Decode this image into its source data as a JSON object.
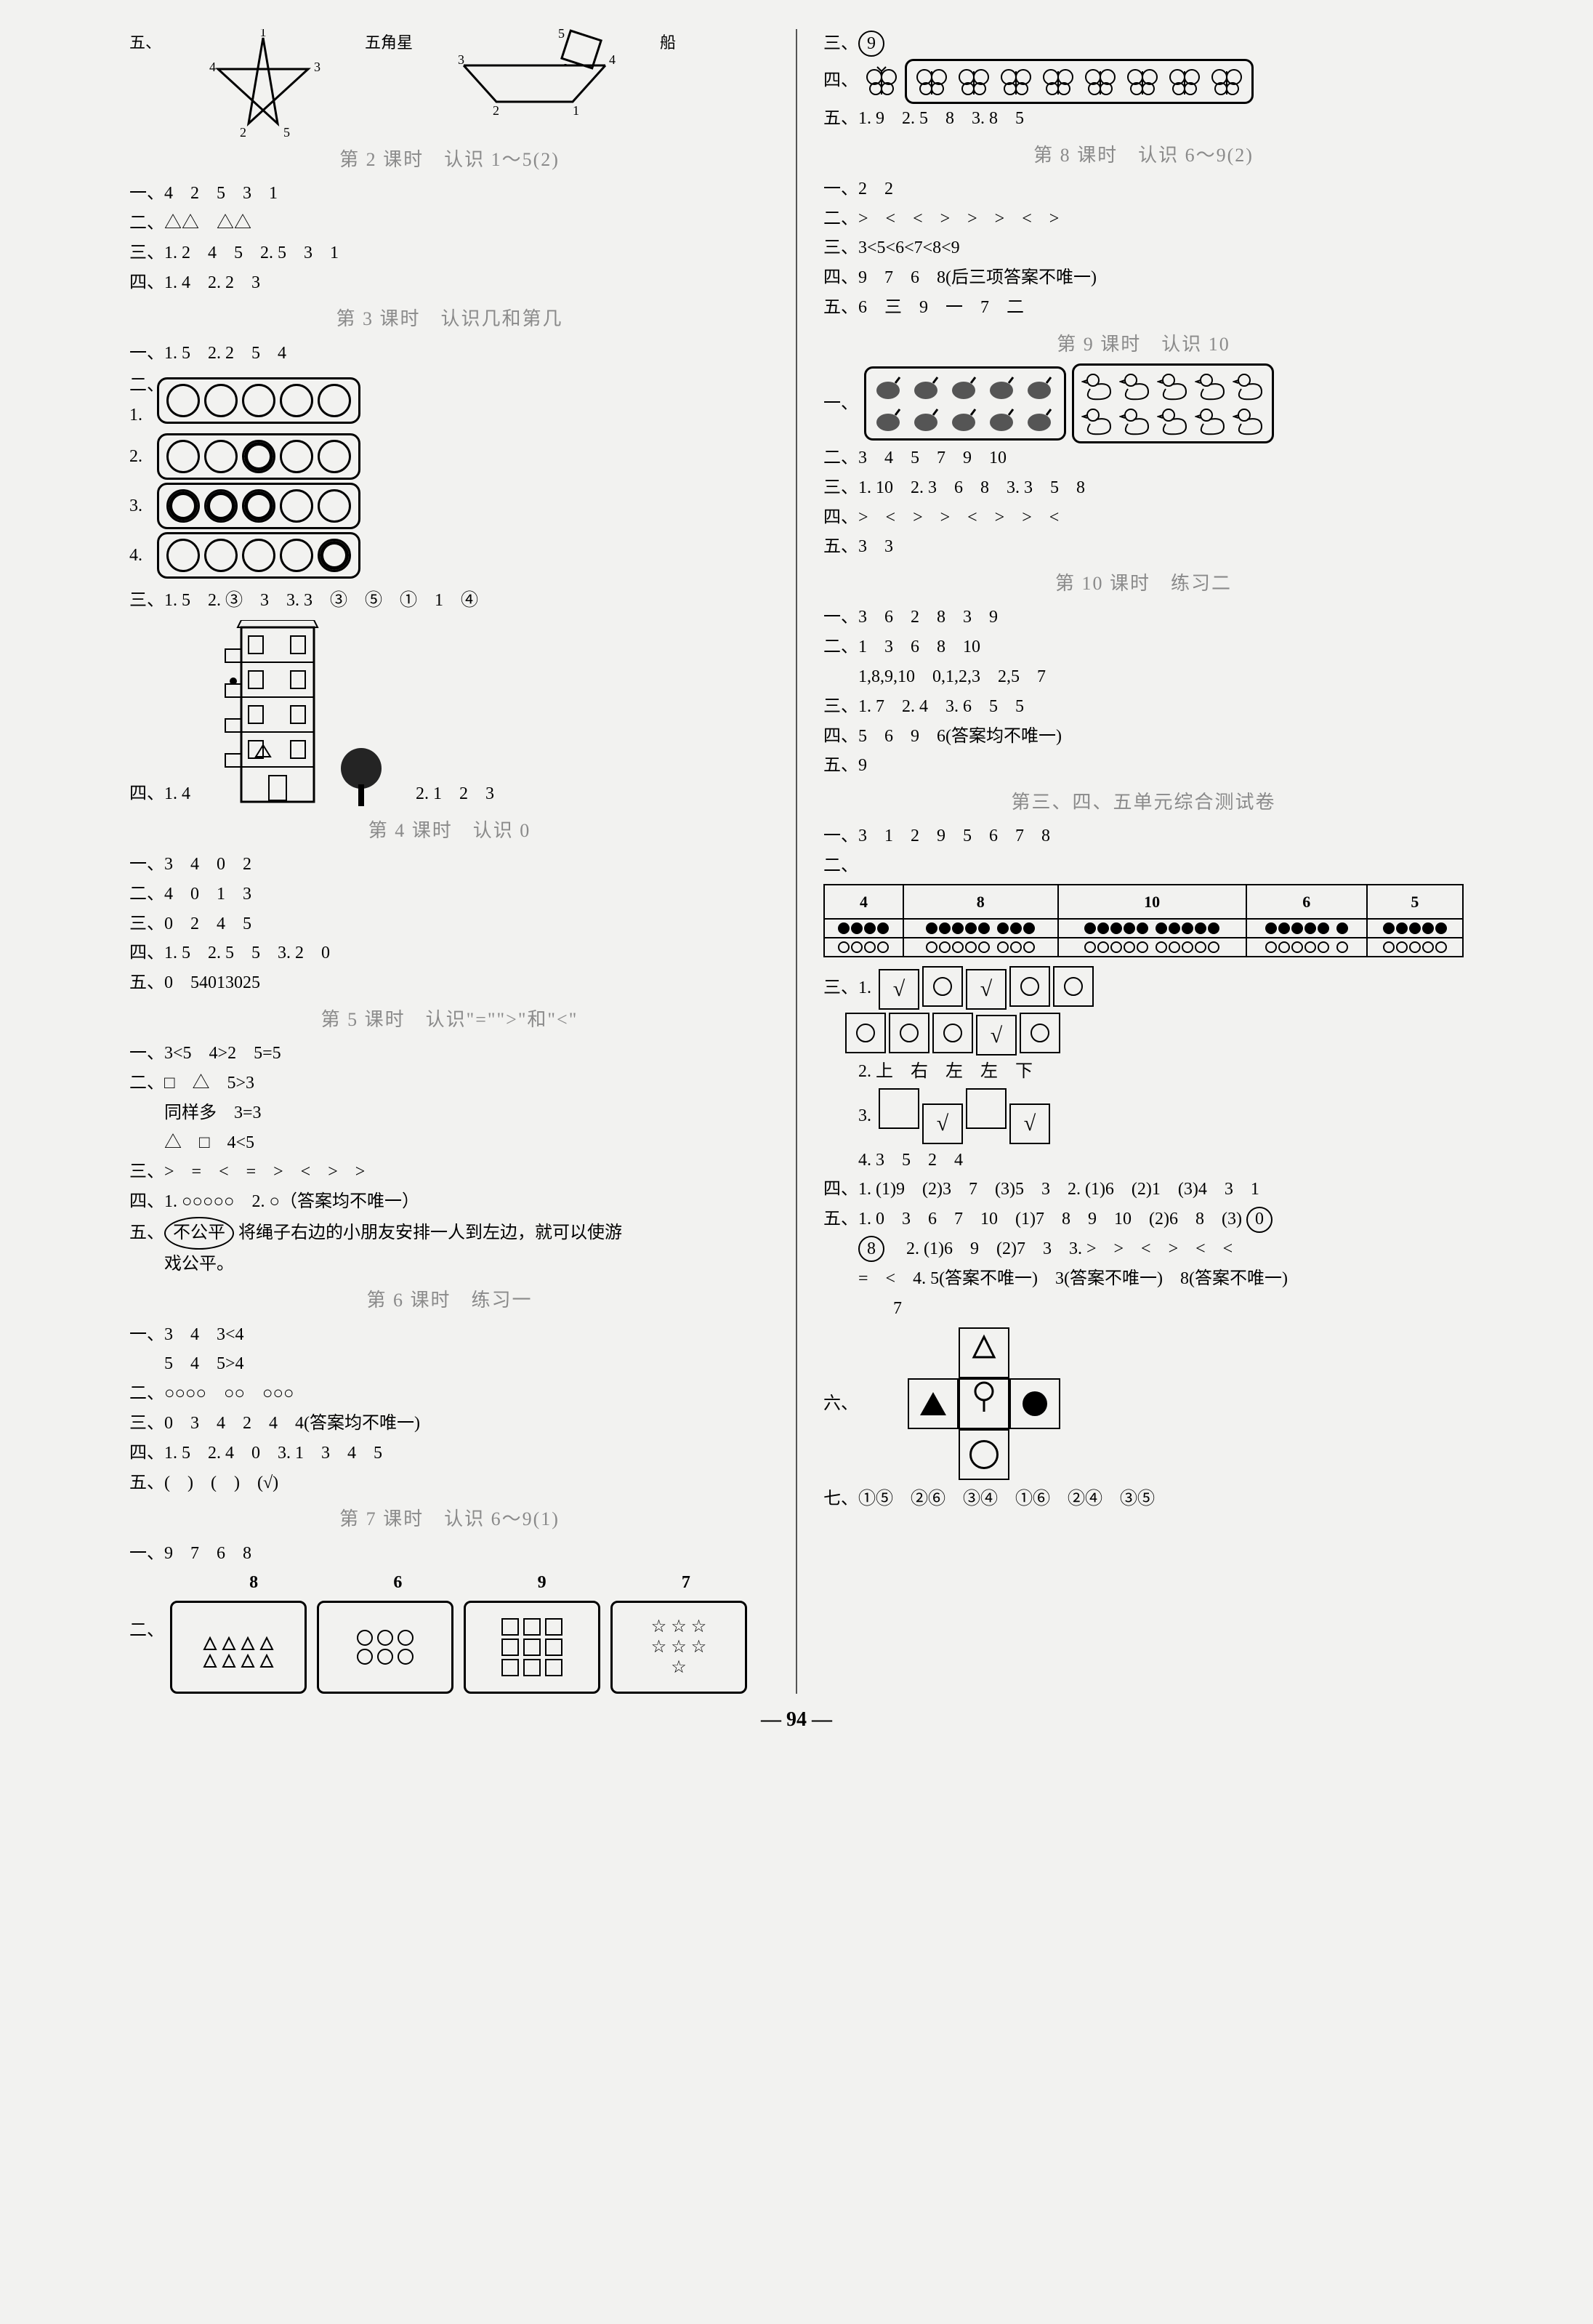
{
  "page_number": "94",
  "left": {
    "starfig": {
      "five_label": "五、",
      "star_label": "五角星",
      "boat_label": "船",
      "star_points": [
        "1",
        "2",
        "3",
        "4",
        "5"
      ],
      "boat_points": [
        "1",
        "2",
        "3",
        "4",
        "5"
      ]
    },
    "l2": {
      "title": "第 2 课时　认识 1～5(2)",
      "a1": "一、4　2　5　3　1",
      "a2": "二、△△　△△",
      "a3": "三、1. 2　4　5　2. 5　3　1",
      "a4": "四、1. 4　2. 2　3"
    },
    "l3": {
      "title": "第 3 课时　认识几和第几",
      "a1": "一、1. 5　2. 2　5　4",
      "two_label": "二、1.",
      "strip2": "2.",
      "strip3": "3.",
      "strip4": "4.",
      "a3": "三、1. 5　2. ③　3　3. 3　③　⑤　①　1　④",
      "a4_left": "四、1. 4",
      "a4_right": "2. 1　2　3"
    },
    "l4": {
      "title": "第 4 课时　认识 0",
      "a1": "一、3　4　0　2",
      "a2": "二、4　0　1　3",
      "a3": "三、0　2　4　5",
      "a4": "四、1. 5　2. 5　5　3. 2　0",
      "a5": "五、0　54013025"
    },
    "l5": {
      "title": "第 5 课时　认识\"=\"\">\"和\"<\"",
      "a1": "一、3<5　4>2　5=5",
      "a2a": "二、□　△　5>3",
      "a2b": "　　同样多　3=3",
      "a2c": "　　△　□　4<5",
      "a3": "三、>　=　<　=　>　<　>　>",
      "a4": "四、1. ○○○○○　2. ○（答案均不唯一）",
      "a5a": "五、",
      "a5oval": "不公平",
      "a5b": " 将绳子右边的小朋友安排一人到左边，就可以使游",
      "a5c": "　　戏公平。"
    },
    "l6": {
      "title": "第 6 课时　练习一",
      "a1a": "一、3　4　3<4",
      "a1b": "　　5　4　5>4",
      "a2": "二、○○○○　○○　○○○",
      "a3": "三、0　3　4　2　4　4(答案均不唯一)",
      "a4": "四、1. 5　2. 4　0　3. 1　3　4　5",
      "a5": "五、(　)　(　)　(√)"
    },
    "l7": {
      "title": "第 7 课时　认识 6～9(1)",
      "a1": "一、9　7　6　8",
      "two_label": "二、",
      "headers": [
        "8",
        "6",
        "9",
        "7"
      ]
    }
  },
  "right": {
    "top": {
      "a3_label": "三、",
      "a3_circ": "9",
      "a4_label": "四、",
      "a5": "五、1. 9　2. 5　8　3. 8　5"
    },
    "l8": {
      "title": "第 8 课时　认识 6～9(2)",
      "a1": "一、2　2",
      "a2": "二、>　<　<　>　>　>　<　>",
      "a3": "三、3<5<6<7<8<9",
      "a4": "四、9　7　6　8(后三项答案不唯一)",
      "a5": "五、6　三　9　一　7　二"
    },
    "l9": {
      "title": "第 9 课时　认识 10",
      "one_label": "一、",
      "a2": "二、3　4　5　7　9　10",
      "a3": "三、1. 10　2. 3　6　8　3. 3　5　8",
      "a4": "四、>　<　>　>　<　>　>　<",
      "a5": "五、3　3"
    },
    "l10": {
      "title": "第 10 课时　练习二",
      "a1": "一、3　6　2　8　3　9",
      "a2a": "二、1　3　6　8　10",
      "a2b": "　　1,8,9,10　0,1,2,3　2,5　7",
      "a3": "三、1. 7　2. 4　3. 6　5　5",
      "a4": "四、5　6　9　6(答案均不唯一)",
      "a5": "五、9"
    },
    "unit": {
      "title": "第三、四、五单元综合测试卷",
      "a1": "一、3　1　2　9　5　6　7　8",
      "two_label": "二、",
      "table": {
        "headers": [
          "4",
          "8",
          "10",
          "6",
          "5"
        ],
        "black": [
          4,
          8,
          10,
          6,
          5
        ],
        "white": [
          4,
          8,
          10,
          6,
          5
        ]
      },
      "three_label": "三、1.",
      "row1": [
        "√",
        "○",
        "√",
        "○",
        "○"
      ],
      "row2": [
        "○",
        "○",
        "○",
        "√",
        "○"
      ],
      "three2": "　　2. 上　右　左　左　下",
      "three3_label": "　　3.",
      "row3": [
        "",
        "√",
        "",
        "√"
      ],
      "three4": "　　4. 3　5　2　4",
      "a4": "四、1. (1)9　(2)3　7　(3)5　3　2. (1)6　(2)1　(3)4　3　1",
      "a5a": "五、1. 0　3　6　7　10　(1)7　8　9　10　(2)6　8　(3)",
      "a5a_circ": "0",
      "a5b_circ": "8",
      "a5b": "　2. (1)6　9　(2)7　3　3. >　>　<　>　<　<",
      "a5c": "　　=　<　4. 5(答案不唯一)　3(答案不唯一)　8(答案不唯一)",
      "a5d": "　　　　7",
      "six_label": "六、",
      "a7": "七、①⑤　②⑥　③④　①⑥　②④　③⑤"
    }
  },
  "colors": {
    "title_gray": "#8a8a8a",
    "ink": "#000000",
    "page_bg": "#f2f2f0"
  }
}
